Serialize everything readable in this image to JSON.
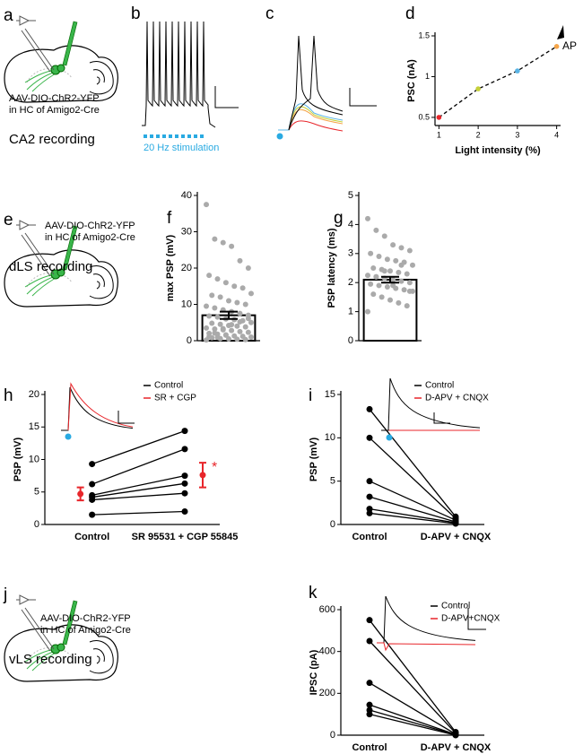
{
  "panels": {
    "a": {
      "label": "a",
      "virus": [
        "AAV-DIO-ChR2-YFP",
        "in HC of Amigo2-Cre"
      ],
      "caption": "CA2 recording"
    },
    "b": {
      "label": "b",
      "stimulus": "20 Hz stimulation"
    },
    "c": {
      "label": "c"
    },
    "e": {
      "label": "e",
      "virus": [
        "AAV-DIO-ChR2-YFP",
        "in HC of Amigo2-Cre"
      ],
      "caption": "dLS recording"
    },
    "j": {
      "label": "j",
      "virus": [
        "AAV-DIO-ChR2-YFP",
        "in HC of Amigo2-Cre"
      ],
      "caption": "vLS recording"
    }
  },
  "chart_data": [
    {
      "type": "line",
      "label": "d",
      "x": [
        1,
        2,
        3,
        4
      ],
      "values": [
        0.5,
        0.85,
        1.07,
        1.37
      ],
      "point_colors": [
        "#e8262b",
        "#c6d13a",
        "#5ab4e5",
        "#f5a54a"
      ],
      "color": "#000000",
      "dashed": true,
      "xlim": [
        0.9,
        4.1
      ],
      "ylim": [
        0.4,
        1.5
      ],
      "xticks": [
        1,
        2,
        3,
        4
      ],
      "yticks": [
        0.5,
        1,
        1.5
      ],
      "xlabel": "Light intensity (%)",
      "ylabel": "PSC (nA)",
      "annotation": "AP"
    },
    {
      "type": "bar_scatter",
      "label": "f",
      "mean": 7.0,
      "error": 1.0,
      "color": "#aaaaaa",
      "points": [
        37.5,
        28,
        27,
        26,
        22,
        20,
        18,
        17,
        16,
        15,
        14.5,
        13,
        12.5,
        12,
        11,
        10.5,
        10,
        9.5,
        9,
        8.5,
        8,
        7.5,
        7,
        6.8,
        6.5,
        6,
        5.8,
        5.5,
        5,
        4.8,
        4.5,
        4.2,
        4,
        3.8,
        3.5,
        3.2,
        3,
        2.8,
        2.5,
        2.3,
        2,
        1.8,
        1.5,
        1.3,
        1.2,
        1,
        0.8,
        0.6,
        0.5,
        0.4,
        0.3,
        0.2,
        2.1,
        3.3,
        4.4,
        5.2,
        6.1,
        1.1,
        0.9,
        1.6
      ],
      "ylim": [
        0,
        40
      ],
      "yticks": [
        0,
        10,
        20,
        30,
        40
      ],
      "ylabel": "max PSP (mV)"
    },
    {
      "type": "bar_scatter",
      "label": "g",
      "mean": 2.1,
      "error": 0.1,
      "color": "#aaaaaa",
      "points": [
        4.2,
        3.8,
        3.6,
        3.3,
        3.2,
        3.1,
        3.0,
        2.9,
        2.8,
        2.75,
        2.7,
        2.6,
        2.5,
        2.45,
        2.4,
        2.35,
        2.3,
        2.25,
        2.2,
        2.15,
        2.1,
        2.05,
        2.0,
        1.95,
        1.9,
        1.85,
        1.8,
        1.75,
        1.7,
        1.6,
        1.5,
        1.4,
        1.3,
        1.2,
        1.0,
        2.2,
        2.4,
        1.9,
        2.6,
        1.7
      ],
      "ylim": [
        0,
        5
      ],
      "yticks": [
        0,
        1,
        2,
        3,
        4,
        5
      ],
      "ylabel": "PSP latency (ms)"
    },
    {
      "type": "paired",
      "label": "h",
      "categories": [
        "Control",
        "SR 95531 + CGP 55845"
      ],
      "series": [
        {
          "values": [
            1.5,
            2.0
          ]
        },
        {
          "values": [
            3.8,
            4.8
          ]
        },
        {
          "values": [
            4.2,
            6.3
          ]
        },
        {
          "values": [
            4.5,
            7.5
          ]
        },
        {
          "values": [
            6.2,
            11.6
          ]
        },
        {
          "values": [
            9.3,
            14.4
          ]
        }
      ],
      "summary": {
        "color": "#e8262b",
        "values": [
          4.7,
          7.6
        ],
        "errors": [
          1.0,
          1.9
        ],
        "annotation": "*"
      },
      "legend": [
        "Control",
        "SR + CGP"
      ],
      "legend_colors": [
        "#000000",
        "#e8262b"
      ],
      "ylim": [
        0,
        20
      ],
      "yticks": [
        0,
        5,
        10,
        15,
        20
      ],
      "ylabel": "PSP (mV)"
    },
    {
      "type": "paired",
      "label": "i",
      "categories": [
        "Control",
        "D-APV + CNQX"
      ],
      "series": [
        {
          "values": [
            13.3,
            0.9
          ]
        },
        {
          "values": [
            10,
            0.7
          ]
        },
        {
          "values": [
            5,
            0.5
          ]
        },
        {
          "values": [
            3.2,
            0.3
          ]
        },
        {
          "values": [
            1.8,
            0.2
          ]
        },
        {
          "values": [
            1.3,
            0.1
          ]
        }
      ],
      "legend": [
        "Control",
        "D-APV + CNQX"
      ],
      "legend_colors": [
        "#000000",
        "#e8262b"
      ],
      "ylim": [
        0,
        15
      ],
      "yticks": [
        0,
        5,
        10,
        15
      ],
      "ylabel": "PSP (mV)"
    },
    {
      "type": "paired",
      "label": "k",
      "categories": [
        "Control",
        "D-APV + CNQX"
      ],
      "series": [
        {
          "values": [
            550,
            15
          ]
        },
        {
          "values": [
            450,
            10
          ]
        },
        {
          "values": [
            250,
            5
          ]
        },
        {
          "values": [
            145,
            3
          ]
        },
        {
          "values": [
            120,
            2
          ]
        },
        {
          "values": [
            100,
            0
          ]
        }
      ],
      "legend": [
        "Control",
        "D-APV+CNQX"
      ],
      "legend_colors": [
        "#000000",
        "#e8262b"
      ],
      "ylim": [
        0,
        600
      ],
      "yticks": [
        0,
        200,
        400,
        600
      ],
      "ylabel": "IPSC (pA)"
    }
  ]
}
